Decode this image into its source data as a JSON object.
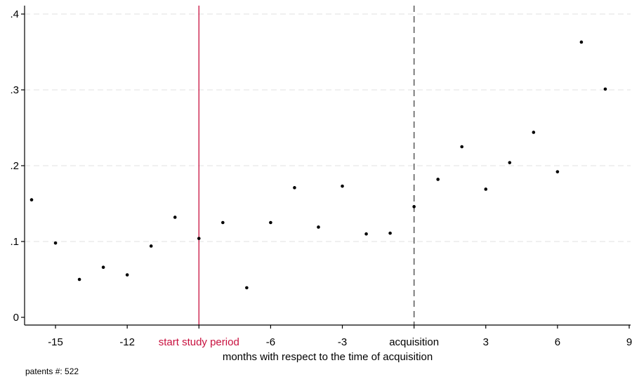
{
  "chart_data": {
    "type": "scatter",
    "xlabel": "months with respect to the time of acquisition",
    "ylabel": "",
    "xlim": [
      -16,
      9
    ],
    "ylim": [
      0,
      0.4
    ],
    "grid": "horizontal dashed",
    "x_ticks": [
      {
        "value": -15,
        "label": "-15"
      },
      {
        "value": -12,
        "label": "-12"
      },
      {
        "value": -9,
        "label": "start study period"
      },
      {
        "value": -6,
        "label": "-6"
      },
      {
        "value": -3,
        "label": "-3"
      },
      {
        "value": 0,
        "label": "acquisition"
      },
      {
        "value": 3,
        "label": "3"
      },
      {
        "value": 6,
        "label": "6"
      },
      {
        "value": 9,
        "label": "9"
      }
    ],
    "y_ticks": [
      {
        "value": 0,
        "label": "0"
      },
      {
        "value": 0.1,
        "label": ".1"
      },
      {
        "value": 0.2,
        "label": ".2"
      },
      {
        "value": 0.3,
        "label": ".3"
      },
      {
        "value": 0.4,
        "label": ".4"
      }
    ],
    "x": [
      -16,
      -15,
      -14,
      -13,
      -12,
      -11,
      -10,
      -9,
      -8,
      -7,
      -6,
      -5,
      -4,
      -3,
      -2,
      -1,
      0,
      1,
      2,
      3,
      4,
      5,
      6,
      7,
      8
    ],
    "y": [
      0.155,
      0.098,
      0.05,
      0.066,
      0.056,
      0.094,
      0.132,
      0.104,
      0.125,
      0.039,
      0.125,
      0.171,
      0.119,
      0.173,
      0.11,
      0.111,
      0.146,
      0.182,
      0.225,
      0.169,
      0.204,
      0.244,
      0.192,
      0.363,
      0.301
    ],
    "reference_lines": [
      {
        "x": -9,
        "style": "solid",
        "color": "#c8103e"
      },
      {
        "x": 0,
        "style": "dashed",
        "color": "#444444"
      }
    ],
    "highlight_color": "#c8103e",
    "point_color": "#000000",
    "footnote": "patents #: 522"
  }
}
